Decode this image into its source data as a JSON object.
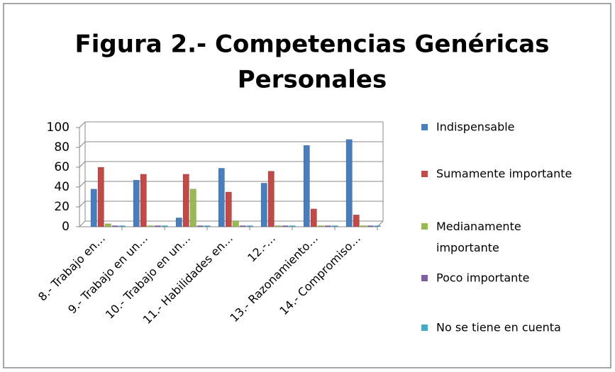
{
  "chart_data": {
    "type": "bar",
    "title_lines": [
      "Figura 2.- Competencias Genéricas",
      "Personales"
    ],
    "categories": [
      "8.- Trabajo en…",
      "9.- Trabajo en un…",
      "10.- Trabajo en un…",
      "11.- Habilidades en…",
      "12.-…",
      "13.- Razonamiento…",
      "14.- Compromiso…"
    ],
    "series": [
      {
        "name": "Indispensable",
        "color": "#4a7ebb",
        "values": [
          38,
          47,
          9,
          59,
          44,
          82,
          88
        ]
      },
      {
        "name": "Sumamente importante",
        "color": "#be4b48",
        "values": [
          60,
          53,
          53,
          35,
          56,
          18,
          12
        ]
      },
      {
        "name": "Medianamente importante",
        "color": "#98b954",
        "values": [
          3,
          0,
          38,
          6,
          0,
          0,
          0
        ]
      },
      {
        "name": "Poco importante",
        "color": "#7d60a0",
        "values": [
          0,
          0,
          0,
          0,
          0,
          0,
          0
        ]
      },
      {
        "name": "No se tiene en cuenta",
        "color": "#46aac5",
        "values": [
          0,
          0,
          0,
          0,
          0,
          0,
          0
        ]
      }
    ],
    "ylim": [
      0,
      100
    ],
    "yticks": [
      0,
      20,
      40,
      60,
      80,
      100
    ],
    "grid": true,
    "legend": "right"
  }
}
